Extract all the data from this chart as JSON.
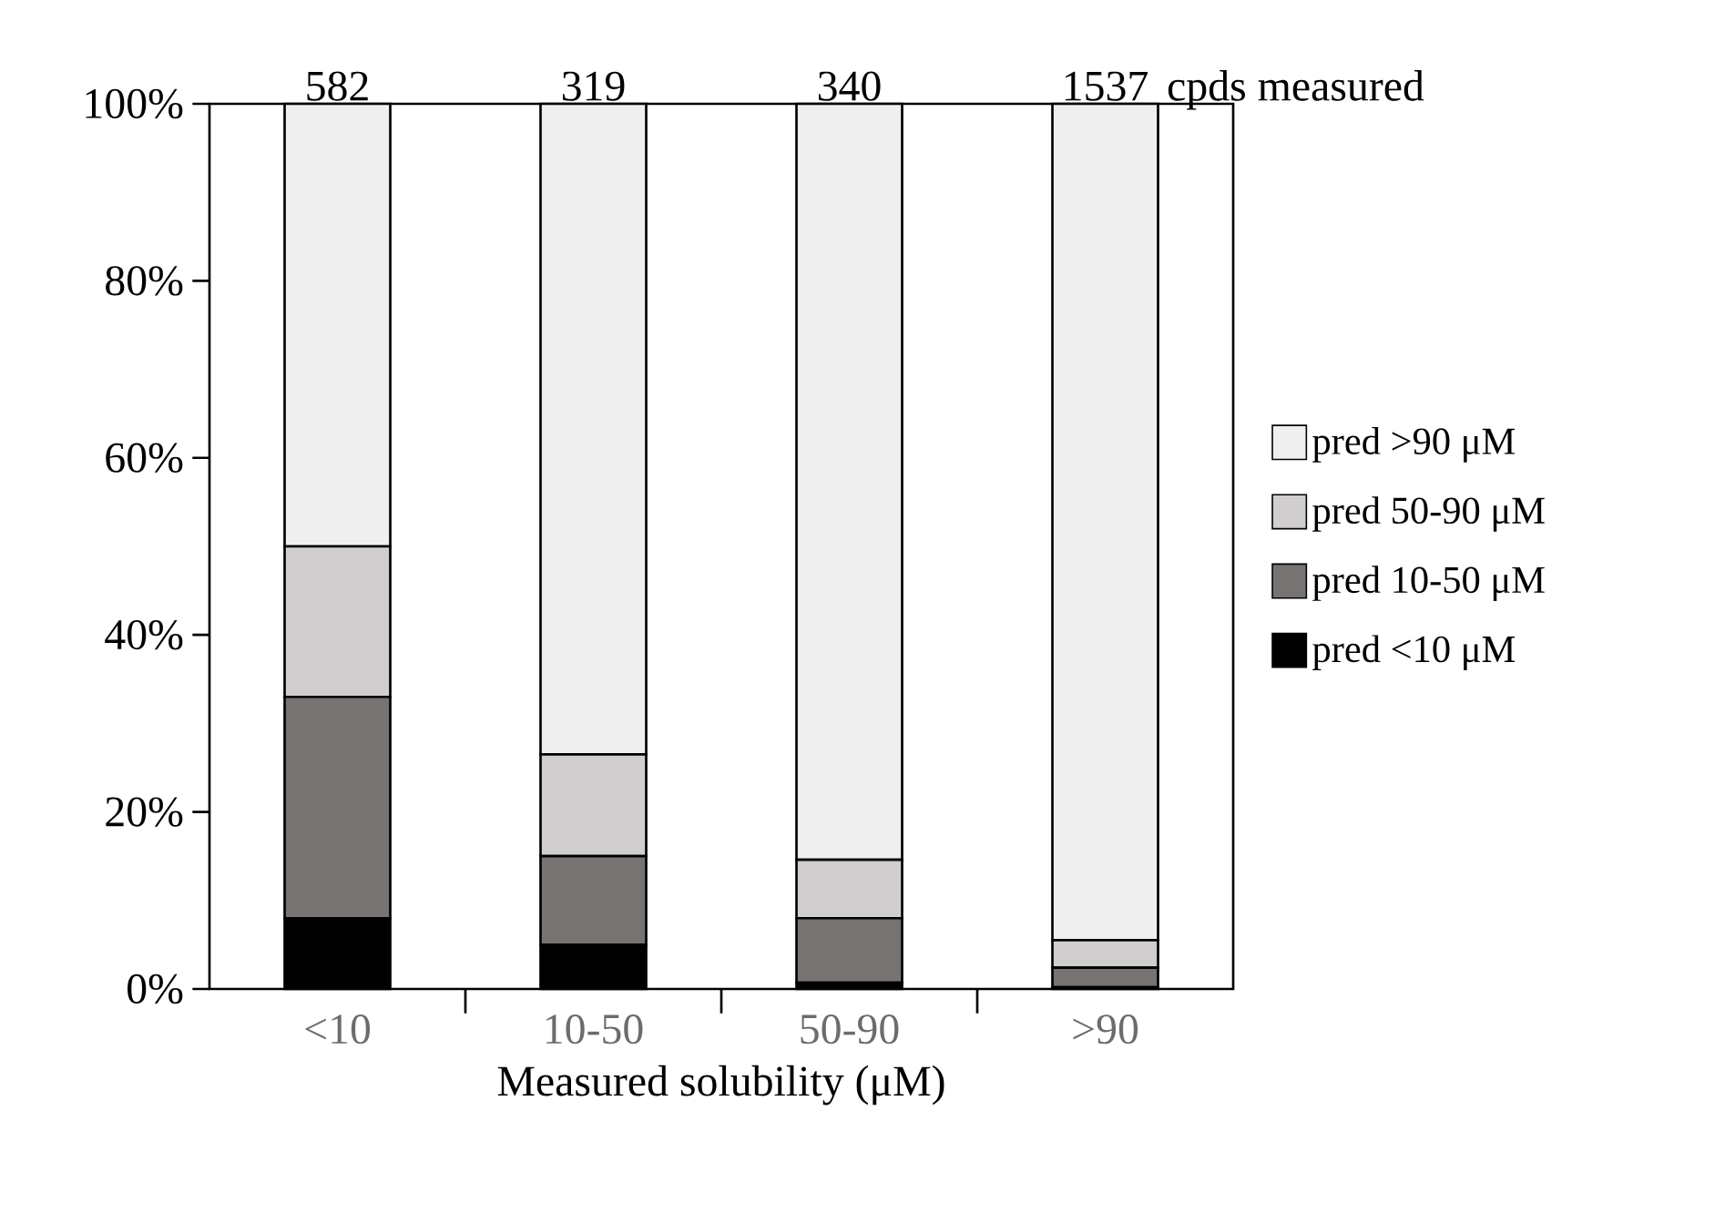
{
  "chart_data": {
    "type": "bar",
    "stacked": true,
    "xlabel": "Measured solubility (μM)",
    "categories": [
      "<10",
      "10-50",
      "50-90",
      ">90"
    ],
    "series": [
      {
        "name": "pred <10 μM",
        "color": "#000000",
        "values": [
          8,
          5,
          0.7,
          0.2
        ]
      },
      {
        "name": "pred 10-50 μM",
        "color": "#777372",
        "values": [
          25,
          10,
          7.3,
          2.2
        ]
      },
      {
        "name": "pred 50-90 μM",
        "color": "#d0cecf",
        "values": [
          17,
          11.5,
          6.6,
          3.1
        ]
      },
      {
        "name": "pred >90 μM",
        "color": "#efefef",
        "values": [
          50,
          73.5,
          85.4,
          94.5
        ]
      }
    ],
    "ylim": [
      0,
      100
    ],
    "yticks": [
      {
        "value": 0,
        "label": "0%"
      },
      {
        "value": 20,
        "label": "20%"
      },
      {
        "value": 40,
        "label": "40%"
      },
      {
        "value": 60,
        "label": "60%"
      },
      {
        "value": 80,
        "label": "80%"
      },
      {
        "value": 100,
        "label": "100%"
      }
    ],
    "legend": "right",
    "grid": false,
    "annotations": [
      {
        "text": "582",
        "x": "<10",
        "y": 100
      },
      {
        "text": "319",
        "x": "10-50",
        "y": 100
      },
      {
        "text": "340",
        "x": "50-90",
        "y": 100
      },
      {
        "text": "1537",
        "x": ">90",
        "y": 100
      },
      "cpds measured"
    ]
  }
}
